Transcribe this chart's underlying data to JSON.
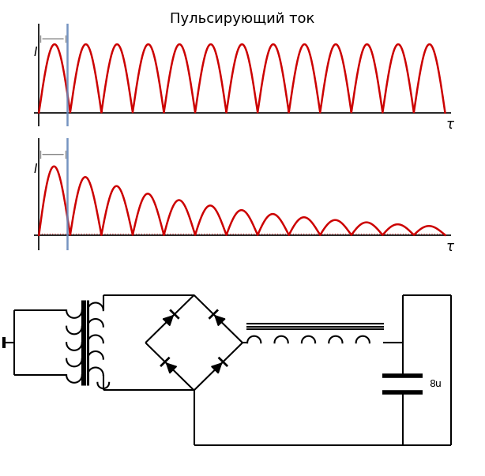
{
  "title": "Пульсирующий ток",
  "title_fontsize": 13,
  "bg_color": "#ffffff",
  "wave_color": "#cc0000",
  "axis_color": "#000000",
  "blue_line_color": "#6688bb",
  "tau_label": "τ",
  "I_label": "I",
  "cap_label": "8u"
}
